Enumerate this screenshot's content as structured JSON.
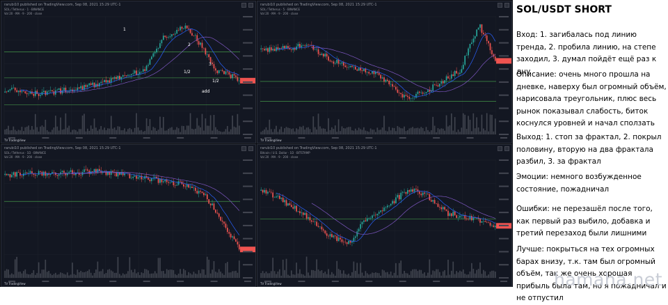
{
  "charts": [
    {
      "header": "rarubi10 published on TradingView.com, Sep 08, 2021 15:29 UTC-1",
      "symbol_line": "SOL / Tetherus · 1 · BINANCE",
      "vol_line": "Vol 20 · MA · 9 · 200 · close",
      "tv_label": "TV TradingView",
      "chart_data": {
        "type": "candlestick",
        "title": "",
        "annotations": [
          "1",
          "2",
          "1/2",
          "3",
          "1/2",
          "add"
        ],
        "series_colors": {
          "up": "#26a69a",
          "down": "#ef5350"
        }
      }
    },
    {
      "header": "rarubi10 published on TradingView.com, Sep 08, 2021 15:29 UTC-1",
      "symbol_line": "SOL / Tetherus · 5 · BINANCE",
      "vol_line": "Vol 20 · MA · 9 · 200 · close",
      "tv_label": "TV TradingView",
      "chart_data": {
        "type": "candlestick",
        "title": ""
      }
    },
    {
      "header": "rarubi10 published on TradingView.com, Sep 08, 2021 15:29 UTC-1",
      "symbol_line": "SOL / Tetherus · 1D · BINANCE",
      "vol_line": "Vol 20 · MA · 9 · 200 · close",
      "tv_label": "TV TradingView",
      "chart_data": {
        "type": "candlestick",
        "title": ""
      }
    },
    {
      "header": "rarubi10 published on TradingView.com, Sep 08, 2021 15:29 UTC-1",
      "symbol_line": "Bitcoin / U.S. Dollar · 1D · BITSTAMP",
      "vol_line": "Vol 20 · MA · 9 · 200 · close",
      "tv_label": "TV TradingView",
      "chart_data": {
        "type": "candlestick",
        "title": ""
      }
    }
  ],
  "notes": {
    "title": "SOL/USDT SHORT",
    "paragraphs": [
      "Вход: 1. загибалась под линию тренда, 2. пробила линию, на степе заходил, 3. думал пойдёт ещё раз к дну",
      "Описание: очень много прошла на дневке, наверху был огромный объём, нарисовала треугольник, плюс весь рынок показывал слабость, биток коснулся уровней и начал сползать",
      "Выход: 1. стоп за фрактал, 2. покрыл половину, вторую на два фрактала разбил, 3. за фрактал",
      "Эмоции: немного возбужденное состояние, пожадничал",
      "Ошибки: не перезашёл после того, как первый раз выбило, добавка и третий перезаход были лишними",
      "Лучше: покрыться на тех огромных барах внизу, т.к. там был огромный объём, так же очень хорошая прибыль была там, но я пожадничал и не отпустил"
    ]
  },
  "watermark": "hamaha.net",
  "colors": {
    "up": "#26a69a",
    "down": "#ef5350",
    "bg": "#131722",
    "grid": "#1e222d",
    "level": "#4caf50"
  }
}
